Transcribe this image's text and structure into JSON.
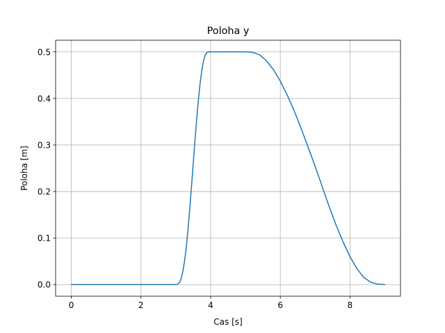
{
  "chart_data": {
    "type": "line",
    "title": "Poloha y",
    "xlabel": "Cas [s]",
    "ylabel": "Poloha [m]",
    "xlim": [
      -0.45,
      9.45
    ],
    "ylim": [
      -0.025,
      0.525
    ],
    "x_ticks": [
      0,
      2,
      4,
      6,
      8
    ],
    "y_ticks": [
      0.0,
      0.1,
      0.2,
      0.3,
      0.4,
      0.5
    ],
    "x_tick_labels": [
      "0",
      "2",
      "4",
      "6",
      "8"
    ],
    "y_tick_labels": [
      "0.0",
      "0.1",
      "0.2",
      "0.3",
      "0.4",
      "0.5"
    ],
    "grid": true,
    "line_color": "#1f77b4",
    "series": [
      {
        "x": [
          0,
          1,
          2,
          3,
          3.05,
          3.1,
          3.15,
          3.2,
          3.25,
          3.3,
          3.35,
          3.4,
          3.45,
          3.5,
          3.55,
          3.6,
          3.65,
          3.7,
          3.75,
          3.8,
          3.85,
          3.9,
          3.95,
          4.0,
          4.5,
          5.0,
          5.2,
          5.4,
          5.6,
          5.8,
          6.0,
          6.2,
          6.4,
          6.6,
          6.8,
          7.0,
          7.2,
          7.4,
          7.6,
          7.8,
          8.0,
          8.2,
          8.4,
          8.6,
          8.8,
          9.0
        ],
        "y": [
          0,
          0,
          0,
          0,
          0.001,
          0.004,
          0.012,
          0.027,
          0.05,
          0.08,
          0.118,
          0.162,
          0.21,
          0.26,
          0.31,
          0.356,
          0.398,
          0.434,
          0.462,
          0.482,
          0.494,
          0.499,
          0.5,
          0.5,
          0.5,
          0.5,
          0.499,
          0.494,
          0.481,
          0.462,
          0.437,
          0.407,
          0.373,
          0.335,
          0.295,
          0.254,
          0.211,
          0.168,
          0.128,
          0.092,
          0.06,
          0.034,
          0.015,
          0.005,
          0.001,
          0.0
        ]
      }
    ]
  }
}
